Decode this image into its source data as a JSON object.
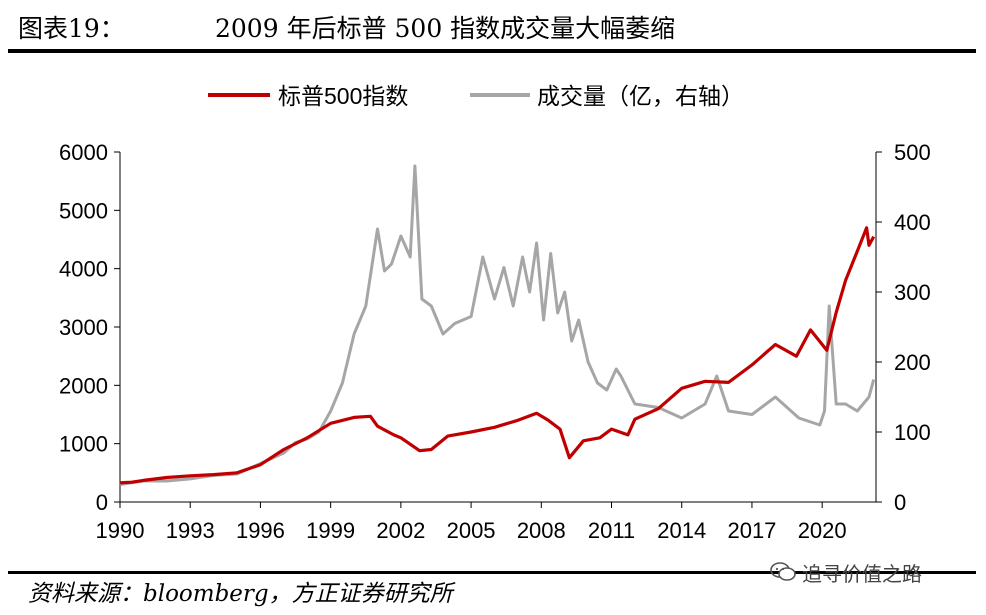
{
  "header": {
    "figure_number": "图表19：",
    "title": "2009 年后标普 500 指数成交量大幅萎缩"
  },
  "footer": {
    "source": "资料来源：bloomberg，方正证券研究所",
    "watermark": "追寻价值之路"
  },
  "colors": {
    "sp500": "#c00000",
    "volume": "#a6a6a6",
    "axis": "#000000"
  },
  "chart_data": {
    "type": "line",
    "title": "",
    "xlabel": "",
    "ylabel": "",
    "legend_position": "top",
    "grid": false,
    "x_ticks": [
      "1990",
      "1993",
      "1996",
      "1999",
      "2002",
      "2005",
      "2008",
      "2011",
      "2014",
      "2017",
      "2020"
    ],
    "xlim": [
      1990,
      2022.3
    ],
    "ylim_left": [
      0,
      6000
    ],
    "ylim_right": [
      0,
      500
    ],
    "yticks_left": [
      "0",
      "1000",
      "2000",
      "3000",
      "4000",
      "5000",
      "6000"
    ],
    "yticks_right": [
      "0",
      "100",
      "200",
      "300",
      "400",
      "500"
    ],
    "series": [
      {
        "name": "标普500指数",
        "axis": "left",
        "color": "#c00000",
        "x": [
          1990,
          1990.5,
          1991,
          1992,
          1993,
          1994,
          1995,
          1996,
          1997,
          1998,
          1999,
          2000,
          2000.7,
          2001,
          2001.7,
          2002,
          2002.8,
          2003.3,
          2004,
          2005,
          2006,
          2007,
          2007.8,
          2008.3,
          2008.8,
          2009.2,
          2009.8,
          2010.5,
          2011,
          2011.7,
          2012,
          2013,
          2014,
          2015,
          2016,
          2017,
          2018,
          2018.9,
          2019.5,
          2020.2,
          2020.6,
          2021,
          2021.5,
          2021.9,
          2022,
          2022.2
        ],
        "y": [
          330,
          340,
          370,
          420,
          450,
          470,
          500,
          640,
          900,
          1100,
          1350,
          1450,
          1470,
          1300,
          1150,
          1100,
          880,
          900,
          1130,
          1200,
          1280,
          1400,
          1520,
          1400,
          1250,
          760,
          1050,
          1100,
          1250,
          1150,
          1420,
          1600,
          1950,
          2070,
          2050,
          2350,
          2700,
          2500,
          2950,
          2600,
          3250,
          3800,
          4300,
          4700,
          4400,
          4550
        ]
      },
      {
        "name": "成交量（亿，右轴）",
        "axis": "right",
        "color": "#a6a6a6",
        "x": [
          1990,
          1991,
          1992,
          1993,
          1994,
          1995,
          1996,
          1997,
          1997.5,
          1998,
          1998.5,
          1999,
          1999.5,
          2000,
          2000.5,
          2001,
          2001.3,
          2001.6,
          2002,
          2002.4,
          2002.6,
          2002.9,
          2003.3,
          2003.8,
          2004.3,
          2005,
          2005.5,
          2006,
          2006.4,
          2006.8,
          2007.2,
          2007.5,
          2007.8,
          2008.1,
          2008.4,
          2008.7,
          2009,
          2009.3,
          2009.6,
          2010,
          2010.4,
          2010.8,
          2011.2,
          2011.4,
          2011.7,
          2012,
          2013,
          2014,
          2015,
          2015.5,
          2016,
          2017,
          2018,
          2019,
          2019.9,
          2020.1,
          2020.3,
          2020.6,
          2021,
          2021.5,
          2022,
          2022.2
        ],
        "y": [
          25,
          30,
          30,
          33,
          38,
          40,
          55,
          70,
          85,
          90,
          100,
          130,
          170,
          240,
          280,
          390,
          330,
          340,
          380,
          350,
          480,
          290,
          280,
          240,
          255,
          265,
          350,
          290,
          335,
          280,
          350,
          300,
          370,
          260,
          355,
          270,
          300,
          230,
          260,
          200,
          170,
          160,
          190,
          180,
          160,
          140,
          135,
          120,
          140,
          180,
          130,
          125,
          150,
          120,
          110,
          130,
          280,
          140,
          140,
          130,
          150,
          175
        ]
      }
    ]
  }
}
